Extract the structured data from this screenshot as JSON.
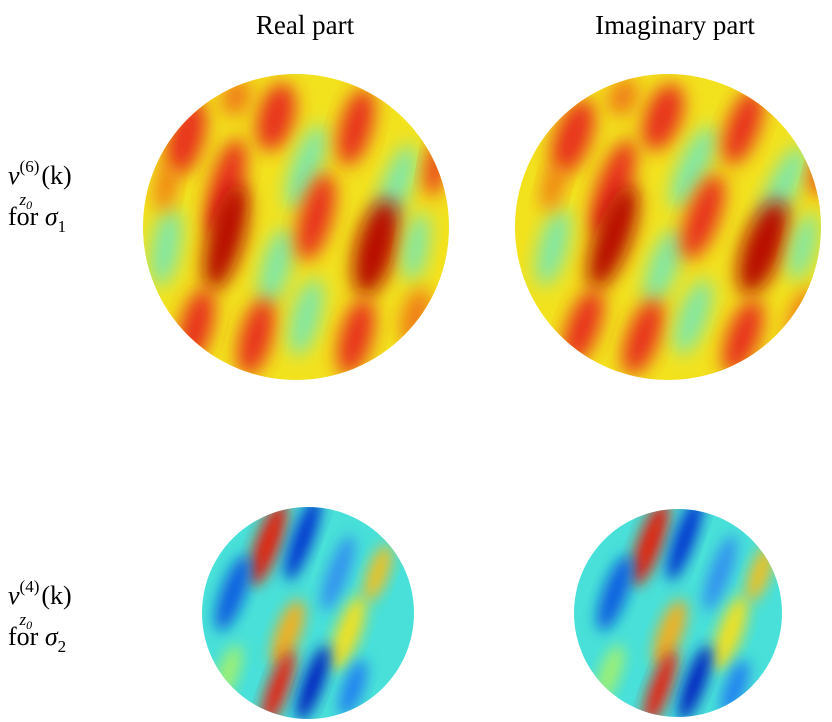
{
  "columns": [
    "Real part",
    "Imaginary part"
  ],
  "rows": [
    {
      "symbol": "ν",
      "sup": "(6)",
      "sub": "z",
      "subsub": "0",
      "arg": "(k)",
      "for": "for",
      "sigma": "σ",
      "sigma_sub": "1"
    },
    {
      "symbol": "ν",
      "sup": "(4)",
      "sub": "z",
      "subsub": "0",
      "arg": "(k)",
      "for": "for",
      "sigma": "σ",
      "sigma_sub": "2"
    }
  ]
}
